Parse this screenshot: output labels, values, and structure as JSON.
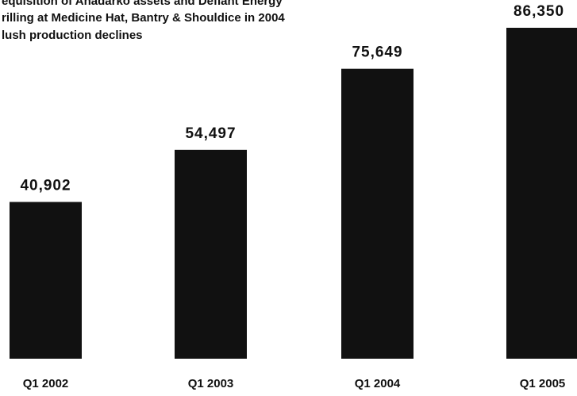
{
  "chart_data": {
    "type": "bar",
    "annotations": [
      "equisition of Anadarko assets and Defiant Energy",
      "rilling at Medicine Hat, Bantry & Shouldice in 2004",
      "lush production declines"
    ],
    "categories": [
      "Q1 2002",
      "Q1 2003",
      "Q1 2004",
      "Q1 2005"
    ],
    "values": [
      40902,
      54497,
      75649,
      86350
    ],
    "value_labels": [
      "40,902",
      "54,497",
      "75,649",
      "86,350"
    ],
    "color": "#111111"
  }
}
